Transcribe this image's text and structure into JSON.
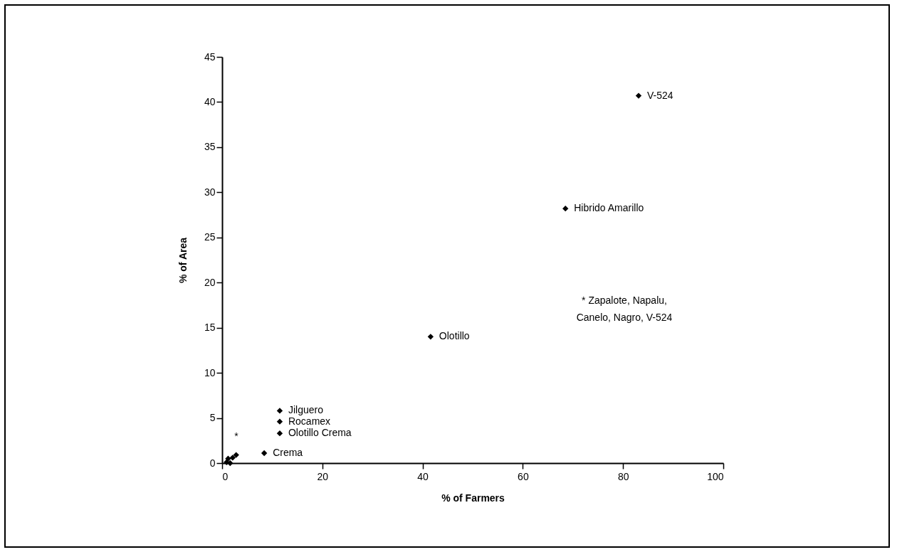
{
  "chart_data": {
    "type": "scatter",
    "xlabel": "% of Farmers",
    "ylabel": "% of Area",
    "x": [
      83.1,
      68.5,
      41.6,
      11.5,
      11.5,
      11.5,
      8.4,
      2.8,
      1.2,
      2.1,
      0.9,
      1.6
    ],
    "series": [
      {
        "color": "#000000",
        "values": [
          40.7,
          28.2,
          14.0,
          5.8,
          4.6,
          3.3,
          1.1,
          0.9,
          0.5,
          0.6,
          0.1,
          0.0
        ]
      }
    ],
    "marker": "diamond",
    "grid": false,
    "xlim": [
      0,
      100
    ],
    "xticks": [
      0,
      20,
      40,
      60,
      80,
      100
    ],
    "ylim": [
      0,
      45
    ],
    "yticks": [
      0,
      5,
      10,
      15,
      20,
      25,
      30,
      35,
      40,
      45
    ],
    "annotations": [
      {
        "text": "V-524",
        "x": 83.1,
        "y": 40.7
      },
      {
        "text": "Hibrido Amarillo",
        "x": 68.5,
        "y": 28.2
      },
      {
        "text": "Olotillo",
        "x": 41.6,
        "y": 14.0
      },
      {
        "text": "Jilguero",
        "x": 11.5,
        "y": 5.8
      },
      {
        "text": "Rocamex",
        "x": 11.5,
        "y": 4.6
      },
      {
        "text": "Olotillo Crema",
        "x": 11.5,
        "y": 3.3
      },
      {
        "text": "Crema",
        "x": 8.4,
        "y": 1.1
      },
      "*",
      "* Zapalote, Napalu, Canelo, Nagro, V-524"
    ]
  }
}
